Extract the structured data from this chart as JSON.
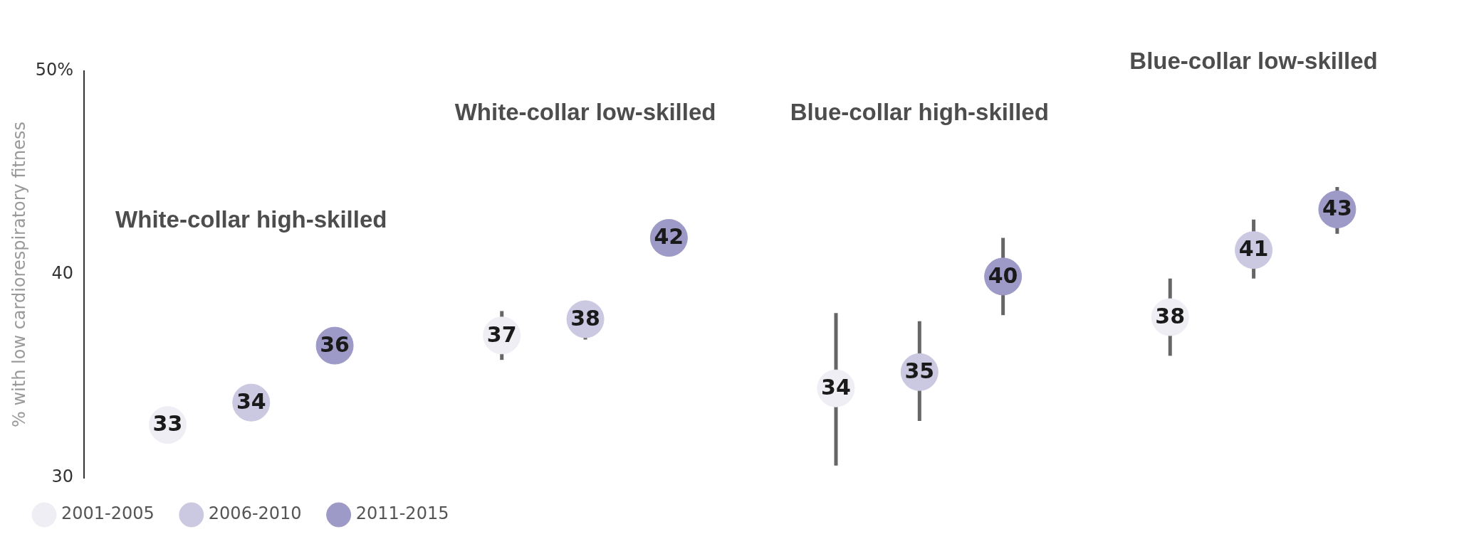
{
  "chart_data": {
    "type": "scatter",
    "ylabel": "% with low cardiorespiratory fitness",
    "categories": [
      "White-collar high-skilled",
      "White-collar low-skilled",
      "Blue-collar high-skilled",
      "Blue-collar low-skilled"
    ],
    "series": [
      {
        "name": "2001-2005",
        "color": "#efeef5",
        "values": [
          32.6,
          37.0,
          34.4,
          37.9
        ],
        "errors": [
          null,
          [
            35.8,
            38.2
          ],
          [
            30.6,
            38.1
          ],
          [
            36.0,
            39.8
          ]
        ],
        "value_labels": [
          "33",
          "37",
          "34",
          "38"
        ]
      },
      {
        "name": "2006-2010",
        "color": "#cbc8e1",
        "values": [
          33.7,
          37.8,
          35.2,
          41.2
        ],
        "errors": [
          null,
          [
            36.8,
            38.7
          ],
          [
            32.8,
            37.7
          ],
          [
            39.8,
            42.7
          ]
        ],
        "value_labels": [
          "34",
          "38",
          "35",
          "41"
        ]
      },
      {
        "name": "2011-2015",
        "color": "#9e9ac8",
        "values": [
          36.5,
          41.8,
          39.9,
          43.2
        ],
        "errors": [
          null,
          null,
          [
            38.0,
            41.8
          ],
          [
            42.0,
            44.3
          ]
        ],
        "value_labels": [
          "36",
          "42",
          "40",
          "43"
        ]
      }
    ],
    "ylim": [
      30,
      50
    ],
    "yticks": [
      30,
      40,
      {
        "value": 50,
        "label": "50%"
      }
    ],
    "grid": false,
    "legend": "bottom left",
    "marker": "circle"
  }
}
